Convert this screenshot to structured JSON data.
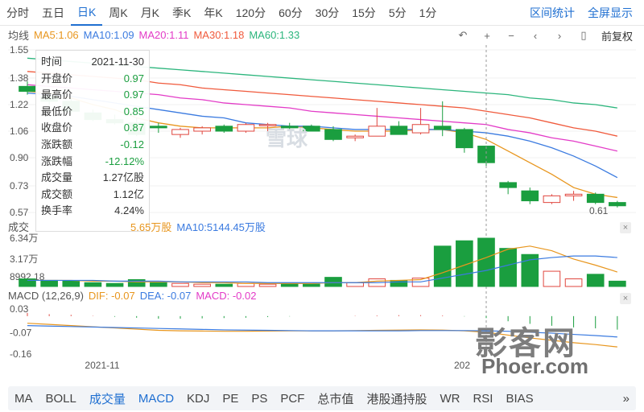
{
  "periods": [
    "分时",
    "五日",
    "日K",
    "周K",
    "月K",
    "季K",
    "年K",
    "120分",
    "60分",
    "30分",
    "15分",
    "5分",
    "1分"
  ],
  "active_period": "日K",
  "period_actions": {
    "range_stats": "区间统计",
    "fullscreen": "全屏显示"
  },
  "ma_row": {
    "label": "均线",
    "items": [
      {
        "text": "MA5:1.06",
        "color": "#e8961e"
      },
      {
        "text": "MA10:1.09",
        "color": "#3b7be0"
      },
      {
        "text": "MA20:1.11",
        "color": "#e33bc7"
      },
      {
        "text": "MA30:1.18",
        "color": "#f05a3c"
      },
      {
        "text": "MA60:1.33",
        "color": "#2bb57c"
      }
    ]
  },
  "controls": {
    "icons": [
      "undo-icon",
      "plus-icon",
      "minus-icon",
      "prev-icon",
      "next-icon",
      "bar-icon"
    ],
    "adjust": "前复权"
  },
  "tooltip": [
    {
      "k": "时间",
      "v": "2021-11-30",
      "cls": ""
    },
    {
      "k": "开盘价",
      "v": "0.97",
      "cls": "green"
    },
    {
      "k": "最高价",
      "v": "0.97",
      "cls": "green"
    },
    {
      "k": "最低价",
      "v": "0.85",
      "cls": "green"
    },
    {
      "k": "收盘价",
      "v": "0.87",
      "cls": "green"
    },
    {
      "k": "涨跌额",
      "v": "-0.12",
      "cls": "green"
    },
    {
      "k": "涨跌幅",
      "v": "-12.12%",
      "cls": "green"
    },
    {
      "k": "成交量",
      "v": "1.27亿股",
      "cls": ""
    },
    {
      "k": "成交额",
      "v": "1.12亿",
      "cls": ""
    },
    {
      "k": "换手率",
      "v": "4.24%",
      "cls": ""
    }
  ],
  "price_ticks": [
    "1.55",
    "1.38",
    "1.22",
    "1.06",
    "0.90",
    "0.73",
    "0.57"
  ],
  "last_price_label": "0.61",
  "volume_legend": {
    "label": "成交",
    "ma5_fragment": "5.65万股",
    "ma10": "MA10:5144.45万股"
  },
  "volume_ticks": [
    "6.34万",
    "3.17万",
    "8992.18"
  ],
  "macd_legend": {
    "title": "MACD (12,26,9)",
    "dif": "DIF: -0.07",
    "dea": "DEA: -0.07",
    "macd": "MACD: -0.02"
  },
  "macd_ticks": [
    "0.03",
    "-0.07",
    "-0.16"
  ],
  "date_labels": [
    "2021-11",
    "202"
  ],
  "indicators": [
    "MA",
    "BOLL",
    "成交量",
    "MACD",
    "KDJ",
    "PE",
    "PS",
    "PCF",
    "总市值",
    "港股通持股",
    "WR",
    "RSI",
    "BIAS"
  ],
  "selected_indicators": [
    "成交量",
    "MACD"
  ],
  "more_indicators": "»",
  "watermarks": {
    "xueqiu": "雪球",
    "yingke": "影客网",
    "site": "Phoer.com"
  },
  "chart_data": {
    "type": "candlestick",
    "price_ylim": [
      0.57,
      1.55
    ],
    "candles": [
      {
        "o": 1.33,
        "h": 1.36,
        "l": 1.28,
        "c": 1.3
      },
      {
        "o": 1.27,
        "h": 1.3,
        "l": 1.22,
        "c": 1.24
      },
      {
        "o": 1.24,
        "h": 1.26,
        "l": 1.16,
        "c": 1.18
      },
      {
        "o": 1.17,
        "h": 1.19,
        "l": 1.12,
        "c": 1.13
      },
      {
        "o": 1.13,
        "h": 1.16,
        "l": 1.1,
        "c": 1.11
      },
      {
        "o": 1.11,
        "h": 1.14,
        "l": 1.03,
        "c": 1.04
      },
      {
        "o": 1.09,
        "h": 1.11,
        "l": 1.05,
        "c": 1.08
      },
      {
        "o": 1.04,
        "h": 1.08,
        "l": 1.02,
        "c": 1.07
      },
      {
        "o": 1.06,
        "h": 1.09,
        "l": 1.04,
        "c": 1.08
      },
      {
        "o": 1.09,
        "h": 1.1,
        "l": 1.05,
        "c": 1.06
      },
      {
        "o": 1.06,
        "h": 1.11,
        "l": 1.05,
        "c": 1.1
      },
      {
        "o": 1.1,
        "h": 1.11,
        "l": 1.06,
        "c": 1.1
      },
      {
        "o": 1.09,
        "h": 1.11,
        "l": 1.06,
        "c": 1.08
      },
      {
        "o": 1.09,
        "h": 1.1,
        "l": 1.06,
        "c": 1.06
      },
      {
        "o": 1.07,
        "h": 1.09,
        "l": 1.0,
        "c": 1.01
      },
      {
        "o": 1.02,
        "h": 1.04,
        "l": 1.0,
        "c": 1.03
      },
      {
        "o": 1.03,
        "h": 1.2,
        "l": 1.03,
        "c": 1.09
      },
      {
        "o": 1.09,
        "h": 1.12,
        "l": 1.04,
        "c": 1.04
      },
      {
        "o": 1.05,
        "h": 1.2,
        "l": 1.04,
        "c": 1.1
      },
      {
        "o": 1.09,
        "h": 1.24,
        "l": 1.03,
        "c": 1.07
      },
      {
        "o": 1.07,
        "h": 1.08,
        "l": 0.93,
        "c": 0.96
      },
      {
        "o": 0.97,
        "h": 0.97,
        "l": 0.85,
        "c": 0.87
      },
      {
        "o": 0.75,
        "h": 0.76,
        "l": 0.68,
        "c": 0.72
      },
      {
        "o": 0.7,
        "h": 0.72,
        "l": 0.62,
        "c": 0.64
      },
      {
        "o": 0.63,
        "h": 0.68,
        "l": 0.62,
        "c": 0.67
      },
      {
        "o": 0.67,
        "h": 0.7,
        "l": 0.64,
        "c": 0.68
      },
      {
        "o": 0.68,
        "h": 0.69,
        "l": 0.62,
        "c": 0.63
      },
      {
        "o": 0.63,
        "h": 0.64,
        "l": 0.6,
        "c": 0.61
      }
    ],
    "ma_series": [
      {
        "name": "MA5",
        "color": "#e8961e",
        "values": [
          1.3,
          1.29,
          1.26,
          1.22,
          1.19,
          1.14,
          1.11,
          1.09,
          1.08,
          1.08,
          1.08,
          1.08,
          1.09,
          1.08,
          1.07,
          1.06,
          1.06,
          1.06,
          1.07,
          1.07,
          1.05,
          1.01,
          0.94,
          0.87,
          0.8,
          0.72,
          0.68,
          0.66
        ]
      },
      {
        "name": "MA10",
        "color": "#3b7be0",
        "values": [
          1.29,
          1.28,
          1.27,
          1.25,
          1.23,
          1.21,
          1.19,
          1.17,
          1.15,
          1.14,
          1.11,
          1.1,
          1.09,
          1.09,
          1.08,
          1.07,
          1.07,
          1.07,
          1.07,
          1.07,
          1.06,
          1.05,
          1.03,
          1.0,
          0.96,
          0.91,
          0.85,
          0.78
        ]
      },
      {
        "name": "MA20",
        "color": "#e33bc7",
        "values": [
          1.34,
          1.33,
          1.32,
          1.31,
          1.3,
          1.29,
          1.28,
          1.26,
          1.25,
          1.23,
          1.22,
          1.21,
          1.2,
          1.18,
          1.17,
          1.16,
          1.15,
          1.14,
          1.13,
          1.12,
          1.11,
          1.1,
          1.07,
          1.05,
          1.02,
          1.0,
          0.97,
          0.94
        ]
      },
      {
        "name": "MA30",
        "color": "#f05a3c",
        "values": [
          1.42,
          1.41,
          1.4,
          1.39,
          1.38,
          1.37,
          1.35,
          1.34,
          1.32,
          1.31,
          1.3,
          1.29,
          1.28,
          1.27,
          1.26,
          1.25,
          1.24,
          1.23,
          1.22,
          1.21,
          1.2,
          1.18,
          1.16,
          1.14,
          1.11,
          1.08,
          1.06,
          1.03
        ]
      },
      {
        "name": "MA60",
        "color": "#2bb57c",
        "values": [
          1.5,
          1.49,
          1.48,
          1.47,
          1.46,
          1.45,
          1.44,
          1.43,
          1.42,
          1.41,
          1.4,
          1.39,
          1.38,
          1.37,
          1.36,
          1.35,
          1.34,
          1.33,
          1.32,
          1.31,
          1.3,
          1.29,
          1.28,
          1.26,
          1.25,
          1.23,
          1.22,
          1.2
        ]
      }
    ],
    "volume_ylim": [
      0,
      6.34
    ],
    "volumes": [
      1.0,
      0.8,
      0.7,
      0.5,
      0.4,
      0.9,
      0.5,
      0.4,
      0.3,
      0.3,
      0.4,
      0.3,
      0.4,
      0.3,
      1.2,
      0.5,
      1.0,
      0.8,
      1.1,
      5.3,
      6.0,
      6.34,
      5.0,
      4.2,
      2.0,
      1.0,
      1.6,
      0.7
    ],
    "volume_ma": [
      {
        "name": "MA5",
        "color": "#e8961e",
        "values": [
          0.8,
          0.8,
          0.8,
          0.7,
          0.7,
          0.6,
          0.6,
          0.6,
          0.5,
          0.5,
          0.4,
          0.4,
          0.4,
          0.4,
          0.5,
          0.5,
          0.7,
          0.8,
          0.9,
          1.8,
          2.8,
          3.8,
          4.9,
          5.3,
          4.7,
          3.6,
          2.8,
          1.9
        ]
      },
      {
        "name": "MA10",
        "color": "#3b7be0",
        "values": [
          0.8,
          0.8,
          0.8,
          0.8,
          0.7,
          0.7,
          0.7,
          0.6,
          0.6,
          0.6,
          0.6,
          0.5,
          0.5,
          0.5,
          0.5,
          0.5,
          0.5,
          0.6,
          0.6,
          1.1,
          1.6,
          2.1,
          2.8,
          3.5,
          3.8,
          4.0,
          4.0,
          3.8
        ]
      }
    ],
    "macd_ylim": [
      -0.16,
      0.03
    ],
    "dif": [
      -0.03,
      -0.035,
      -0.04,
      -0.045,
      -0.05,
      -0.055,
      -0.06,
      -0.062,
      -0.063,
      -0.064,
      -0.064,
      -0.063,
      -0.062,
      -0.062,
      -0.062,
      -0.061,
      -0.06,
      -0.059,
      -0.058,
      -0.059,
      -0.062,
      -0.068,
      -0.08,
      -0.092,
      -0.102,
      -0.112,
      -0.12,
      -0.13
    ],
    "dea": [
      -0.04,
      -0.042,
      -0.044,
      -0.046,
      -0.048,
      -0.05,
      -0.052,
      -0.054,
      -0.056,
      -0.058,
      -0.059,
      -0.06,
      -0.061,
      -0.062,
      -0.062,
      -0.062,
      -0.062,
      -0.062,
      -0.061,
      -0.061,
      -0.061,
      -0.062,
      -0.064,
      -0.068,
      -0.072,
      -0.077,
      -0.082,
      -0.088
    ],
    "macd_hist": [
      0.01,
      0.006,
      0.004,
      0.001,
      -0.002,
      -0.005,
      -0.008,
      -0.008,
      -0.007,
      -0.006,
      -0.005,
      -0.003,
      -0.001,
      0,
      0,
      0.001,
      0.002,
      0.003,
      0.003,
      0.002,
      -0.001,
      -0.006,
      -0.016,
      -0.024,
      -0.03,
      -0.035,
      -0.038,
      -0.042
    ]
  }
}
